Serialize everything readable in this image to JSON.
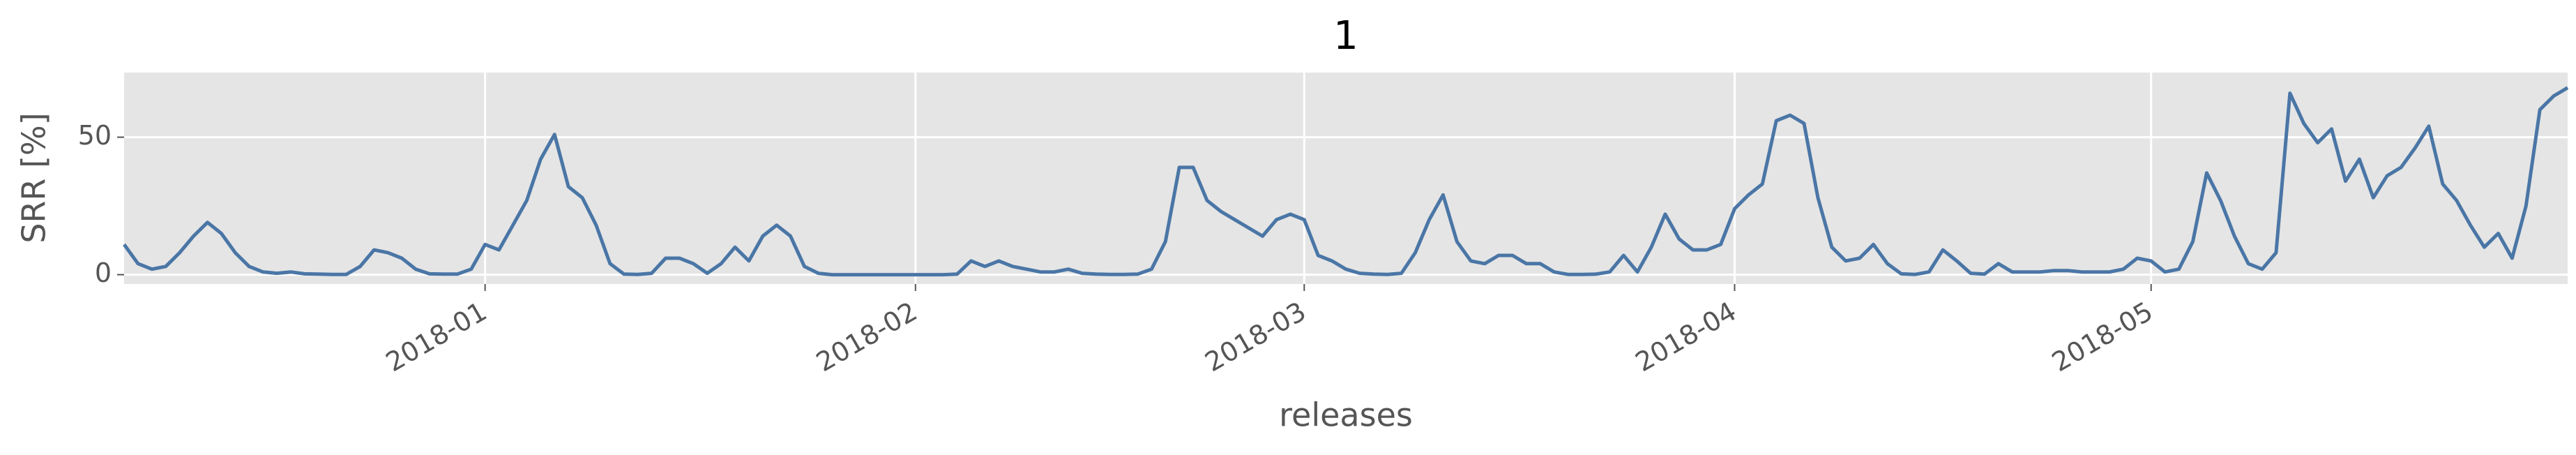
{
  "chart_data": {
    "type": "line",
    "title": "1",
    "x_label": "releases",
    "y_label": "SRR [%]",
    "values": [
      11,
      4,
      2,
      3,
      8,
      14,
      19,
      15,
      8,
      3,
      1,
      0.5,
      1,
      0.3,
      0.2,
      0.1,
      0.1,
      3,
      9,
      8,
      6,
      2,
      0.3,
      0.2,
      0.2,
      2,
      11,
      9,
      18,
      27,
      42,
      51,
      32,
      28,
      18,
      4,
      0.2,
      0.1,
      0.5,
      6,
      6,
      4,
      0.5,
      4,
      10,
      5,
      14,
      18,
      14,
      3,
      0.5,
      0,
      0,
      0,
      0,
      0,
      0,
      0,
      0,
      0,
      0.2,
      5,
      3,
      5,
      3,
      2,
      1,
      1,
      2,
      0.5,
      0.2,
      0.1,
      0.1,
      0.2,
      2,
      12,
      39,
      39,
      27,
      23,
      20,
      17,
      14,
      20,
      22,
      20,
      7,
      5,
      2,
      0.5,
      0.2,
      0.1,
      0.5,
      8,
      20,
      29,
      12,
      5,
      4,
      7,
      7,
      4,
      4,
      1,
      0.1,
      0.1,
      0.2,
      1,
      7,
      1,
      10,
      22,
      13,
      9,
      9,
      11,
      24,
      29,
      33,
      56,
      58,
      55,
      28,
      10,
      5,
      6,
      11,
      4,
      0.3,
      0.1,
      1,
      9,
      5,
      0.5,
      0.2,
      4,
      1,
      1,
      1,
      1.5,
      1.5,
      1,
      1,
      1,
      2,
      6,
      5,
      1,
      2,
      12,
      37,
      27,
      14,
      4,
      2,
      8,
      66,
      55,
      48,
      53,
      34,
      42,
      28,
      36,
      39,
      46,
      54,
      33,
      27,
      18,
      10,
      15,
      6,
      25,
      60,
      65,
      68
    ],
    "color": "#4a76a6",
    "xlim": [
      0,
      176
    ],
    "xticks": [
      {
        "value": 26,
        "label": "2018-01"
      },
      {
        "value": 57,
        "label": "2018-02"
      },
      {
        "value": 85,
        "label": "2018-03"
      },
      {
        "value": 116,
        "label": "2018-04"
      },
      {
        "value": 146,
        "label": "2018-05"
      }
    ],
    "ylim": [
      -3.4,
      73.5
    ],
    "yticks": [
      0,
      50
    ],
    "grid": true
  }
}
